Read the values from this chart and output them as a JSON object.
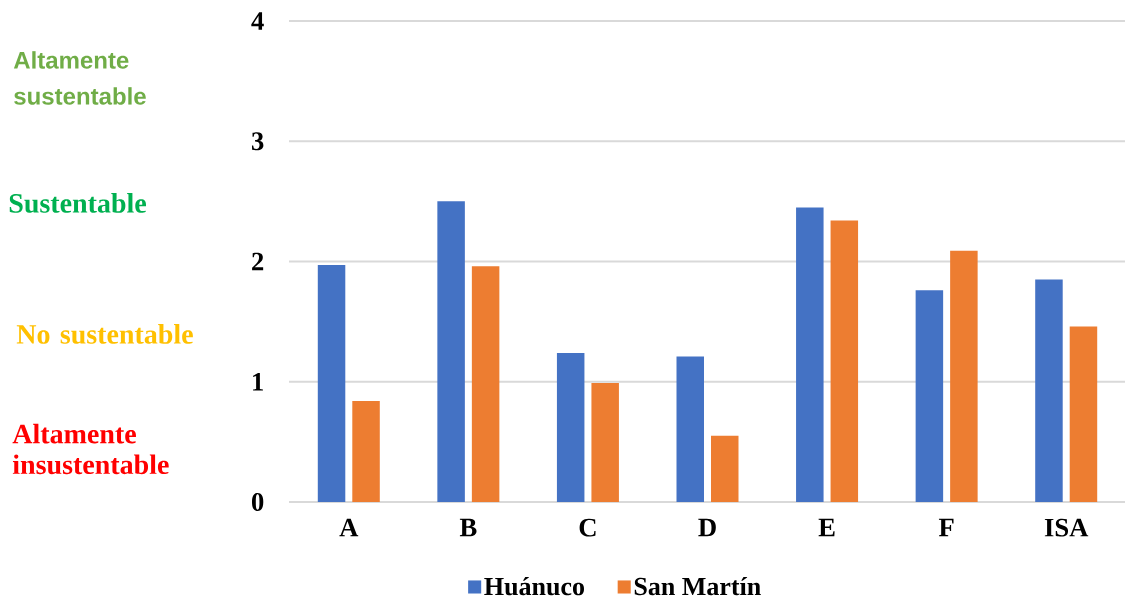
{
  "chart_data": {
    "type": "bar",
    "categories": [
      "A",
      "B",
      "C",
      "D",
      "E",
      "F",
      "ISA"
    ],
    "series": [
      {
        "name": "Huánuco",
        "color": "#4472c4",
        "values": [
          1.97,
          2.5,
          1.24,
          1.21,
          2.45,
          1.76,
          1.85
        ]
      },
      {
        "name": "San Martín",
        "color": "#ed7d31",
        "values": [
          0.84,
          1.96,
          0.99,
          0.55,
          2.34,
          2.09,
          1.46
        ]
      }
    ],
    "ylim": [
      0,
      4
    ],
    "yticks": [
      0,
      1,
      2,
      3,
      4
    ],
    "grid": "y",
    "legend": "bottom",
    "annotations": [
      "Altamente sustentable",
      "Sustentable",
      "No sustentable",
      "Altamente insustentable"
    ]
  }
}
